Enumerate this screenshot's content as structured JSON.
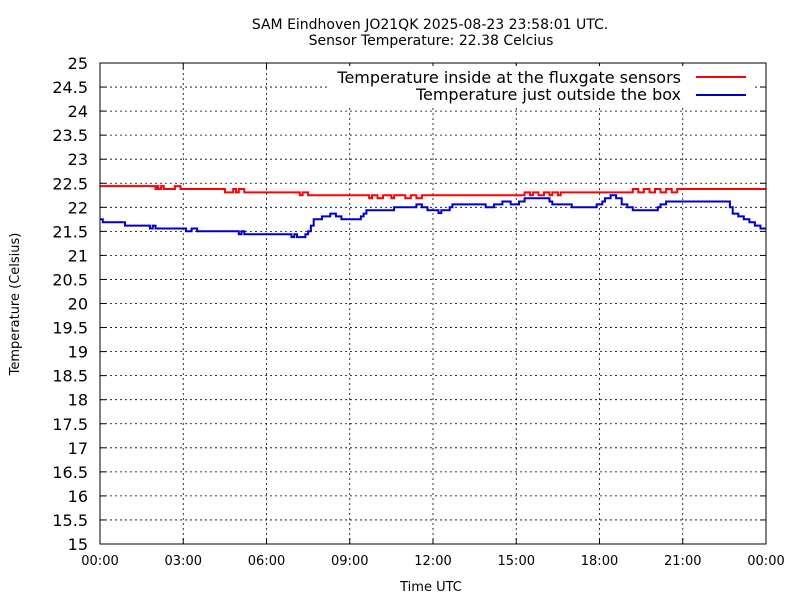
{
  "chart_data": {
    "type": "line",
    "title": "SAM Eindhoven JO21QK 2025-08-23 23:58:01 UTC.",
    "subtitle": "Sensor Temperature: 22.38 Celcius",
    "xlabel": "Time UTC",
    "ylabel": "Temperature (Celsius)",
    "ylim": [
      15,
      25
    ],
    "xlim": [
      0,
      24
    ],
    "yticks": [
      "15",
      "15.5",
      "16",
      "16.5",
      "17",
      "17.5",
      "18",
      "18.5",
      "19",
      "19.5",
      "20",
      "20.5",
      "21",
      "21.5",
      "22",
      "22.5",
      "23",
      "23.5",
      "24",
      "24.5",
      "25"
    ],
    "xticks": [
      "00:00",
      "03:00",
      "06:00",
      "09:00",
      "12:00",
      "15:00",
      "18:00",
      "21:00",
      "00:00"
    ],
    "grid": true,
    "legend_position": "top-right",
    "series": [
      {
        "name": "Temperature inside at the fluxgate sensors",
        "color": "#ff0000",
        "x": [
          0,
          1.9,
          2.0,
          2.05,
          2.1,
          2.2,
          2.3,
          2.5,
          2.7,
          2.9,
          3.0,
          3.1,
          4.4,
          4.5,
          4.8,
          4.9,
          5.0,
          5.2,
          5.3,
          7.1,
          7.2,
          7.3,
          7.5,
          7.6,
          7.7,
          9.6,
          9.7,
          9.8,
          10.0,
          10.2,
          10.5,
          10.6,
          11.0,
          11.2,
          11.4,
          11.6,
          11.7,
          12.0,
          12.2,
          15.2,
          15.3,
          15.5,
          15.6,
          15.8,
          16.0,
          16.2,
          16.3,
          16.5,
          16.6,
          19.0,
          19.2,
          19.4,
          19.6,
          19.8,
          20.0,
          20.2,
          20.4,
          20.6,
          20.8,
          21.0,
          24
        ],
        "y": [
          22.44,
          22.44,
          22.38,
          22.44,
          22.38,
          22.44,
          22.38,
          22.38,
          22.44,
          22.38,
          22.38,
          22.38,
          22.38,
          22.31,
          22.38,
          22.31,
          22.38,
          22.31,
          22.31,
          22.31,
          22.25,
          22.31,
          22.25,
          22.25,
          22.25,
          22.25,
          22.19,
          22.25,
          22.19,
          22.25,
          22.19,
          22.25,
          22.19,
          22.25,
          22.19,
          22.25,
          22.25,
          22.25,
          22.25,
          22.25,
          22.31,
          22.25,
          22.31,
          22.25,
          22.31,
          22.25,
          22.31,
          22.25,
          22.31,
          22.31,
          22.38,
          22.31,
          22.38,
          22.31,
          22.38,
          22.31,
          22.38,
          22.31,
          22.38,
          22.38,
          22.38
        ]
      },
      {
        "name": "Temperature just outside the box",
        "color": "#0000cc",
        "x": [
          0,
          0.1,
          0.2,
          0.8,
          0.9,
          1.7,
          1.8,
          1.9,
          2.0,
          2.1,
          3.0,
          3.1,
          3.3,
          3.5,
          3.6,
          4.9,
          5.0,
          5.1,
          5.2,
          6.1,
          6.2,
          6.8,
          6.9,
          7.0,
          7.1,
          7.3,
          7.4,
          7.5,
          7.6,
          7.7,
          8.0,
          8.1,
          8.3,
          8.5,
          8.7,
          8.8,
          9.0,
          9.4,
          9.5,
          9.6,
          9.7,
          10.5,
          10.6,
          11.3,
          11.4,
          11.6,
          11.8,
          12.2,
          12.3,
          12.6,
          12.7,
          13.0,
          13.8,
          13.9,
          14.2,
          14.4,
          14.5,
          14.8,
          15.0,
          15.1,
          15.3,
          15.5,
          15.7,
          15.9,
          16.2,
          16.3,
          16.5,
          16.7,
          17.0,
          17.2,
          17.5,
          17.9,
          18.1,
          18.2,
          18.4,
          18.6,
          18.8,
          19.0,
          19.2,
          19.3,
          19.5,
          20.0,
          20.1,
          20.2,
          20.4,
          21.0,
          21.5,
          21.7,
          21.8,
          22.6,
          22.7,
          22.8,
          23.0,
          23.2,
          23.4,
          23.6,
          23.8,
          24
        ],
        "y": [
          21.75,
          21.69,
          21.69,
          21.69,
          21.62,
          21.62,
          21.56,
          21.62,
          21.56,
          21.56,
          21.56,
          21.5,
          21.56,
          21.5,
          21.5,
          21.5,
          21.44,
          21.5,
          21.44,
          21.44,
          21.44,
          21.44,
          21.38,
          21.44,
          21.38,
          21.38,
          21.44,
          21.5,
          21.62,
          21.75,
          21.81,
          21.81,
          21.87,
          21.81,
          21.75,
          21.75,
          21.75,
          21.81,
          21.87,
          21.94,
          21.94,
          21.94,
          22.0,
          22.0,
          22.06,
          22.0,
          21.94,
          21.88,
          21.94,
          22.0,
          22.06,
          22.06,
          22.06,
          22.0,
          22.06,
          22.06,
          22.12,
          22.06,
          22.06,
          22.12,
          22.19,
          22.19,
          22.19,
          22.19,
          22.12,
          22.06,
          22.06,
          22.06,
          22.0,
          22.0,
          22.0,
          22.06,
          22.12,
          22.19,
          22.25,
          22.19,
          22.06,
          22.0,
          21.94,
          21.94,
          21.94,
          21.94,
          22.0,
          22.06,
          22.12,
          22.12,
          22.12,
          22.12,
          22.12,
          22.12,
          22.0,
          21.87,
          21.81,
          21.75,
          21.69,
          21.62,
          21.56,
          21.56
        ]
      }
    ]
  }
}
